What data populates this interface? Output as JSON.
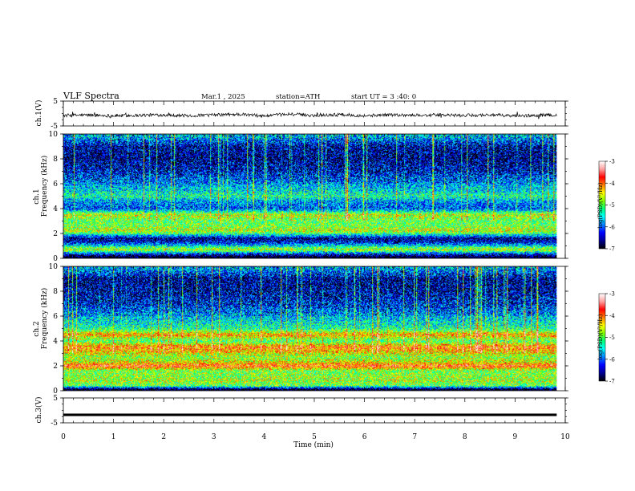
{
  "header": {
    "title": "VLF  Spectra",
    "date": "Mar.1  , 2025",
    "station": "station=ATH",
    "start_ut": "start  UT  =   3  :40: 0"
  },
  "panels": {
    "ch1_wave": {
      "ylabel": "ch.1(V)",
      "yticks": [
        "5",
        "-5"
      ]
    },
    "ch1_spec": {
      "ylabel_line1": "ch.1",
      "ylabel_line2": "Frequency  (kHz)",
      "yticks": [
        "0",
        "2",
        "4",
        "6",
        "8",
        "10"
      ]
    },
    "ch2_spec": {
      "ylabel_line1": "ch.2",
      "ylabel_line2": "Frequency  (kHz)",
      "yticks": [
        "0",
        "2",
        "4",
        "6",
        "8",
        "10"
      ]
    },
    "ch3_wave": {
      "ylabel": "ch.3(V)",
      "yticks": [
        "5",
        "-5"
      ]
    }
  },
  "xaxis": {
    "label": "Time  (min)",
    "ticks": [
      "0",
      "1",
      "2",
      "3",
      "4",
      "5",
      "6",
      "7",
      "8",
      "9",
      "10"
    ]
  },
  "colorbar": {
    "label": "log(PSD)(V²/Hz)",
    "ticks": [
      "-3",
      "-4",
      "-5",
      "-6",
      "-7"
    ]
  },
  "colors": {
    "colormap": [
      "#000000",
      "#00008f",
      "#0000ff",
      "#007fff",
      "#00ffff",
      "#00ff7f",
      "#7fff00",
      "#ffff00",
      "#ff7f00",
      "#ff0000",
      "#ff9f9f",
      "#ffffff"
    ]
  },
  "chart_data": [
    {
      "type": "line",
      "name": "ch.1 waveform",
      "xlabel": "Time  (min)",
      "ylabel": "ch.1(V)",
      "xlim": [
        0,
        10
      ],
      "ylim": [
        -5,
        5
      ],
      "x": [
        0,
        0.5,
        1,
        1.5,
        2,
        2.5,
        3,
        3.5,
        4,
        4.5,
        5,
        5.5,
        6,
        6.5,
        7,
        7.5,
        8,
        8.5,
        9,
        9.5,
        9.83
      ],
      "y": [
        -0.8,
        -0.6,
        -0.9,
        -0.7,
        -0.5,
        -0.9,
        -0.6,
        -0.3,
        -1.0,
        -0.2,
        -0.8,
        -0.4,
        -0.9,
        -0.5,
        -0.7,
        -0.6,
        -0.8,
        -0.5,
        -1.0,
        -0.7,
        -0.6
      ]
    },
    {
      "type": "heatmap",
      "name": "ch.1 spectrogram",
      "xlabel": "Time  (min)",
      "ylabel": "Frequency  (kHz)",
      "xlim": [
        0,
        10
      ],
      "ylim": [
        0,
        10
      ],
      "data_extent_x": [
        0,
        9.83
      ],
      "colorbar_label": "log(PSD)(V²/Hz)",
      "clim": [
        -7,
        -3
      ],
      "band_freqs_khz": [
        0.1,
        0.3,
        0.7,
        1.0,
        1.3,
        1.6,
        2.0,
        2.2,
        2.6,
        3.0,
        3.5,
        4.0,
        4.5,
        5.0,
        5.5,
        6.0,
        7.0,
        8.0,
        9.0,
        9.8
      ],
      "band_log_psd": [
        -7.0,
        -6.4,
        -4.6,
        -5.5,
        -6.4,
        -6.6,
        -5.1,
        -4.6,
        -4.9,
        -5.0,
        -4.6,
        -6.1,
        -5.9,
        -5.3,
        -5.6,
        -5.8,
        -6.3,
        -6.5,
        -6.4,
        -5.6
      ]
    },
    {
      "type": "heatmap",
      "name": "ch.2 spectrogram",
      "xlabel": "Time  (min)",
      "ylabel": "Frequency  (kHz)",
      "xlim": [
        0,
        10
      ],
      "ylim": [
        0,
        10
      ],
      "data_extent_x": [
        0,
        9.83
      ],
      "colorbar_label": "log(PSD)(V²/Hz)",
      "clim": [
        -7,
        -3
      ],
      "band_freqs_khz": [
        0.1,
        0.4,
        0.8,
        1.2,
        1.6,
        2.0,
        2.3,
        2.7,
        3.0,
        3.5,
        4.0,
        4.5,
        5.0,
        5.5,
        6.0,
        7.0,
        8.0,
        9.0,
        9.8
      ],
      "band_log_psd": [
        -7.0,
        -5.0,
        -4.7,
        -4.8,
        -4.9,
        -3.8,
        -4.5,
        -4.8,
        -4.5,
        -4.0,
        -5.1,
        -4.2,
        -5.3,
        -5.5,
        -5.7,
        -6.2,
        -6.4,
        -6.5,
        -5.7
      ]
    },
    {
      "type": "line",
      "name": "ch.3 waveform",
      "xlabel": "Time  (min)",
      "ylabel": "ch.3(V)",
      "xlim": [
        0,
        10
      ],
      "ylim": [
        -5,
        5
      ],
      "x": [
        0,
        9.83
      ],
      "y": [
        -1.8,
        -1.8
      ]
    }
  ]
}
